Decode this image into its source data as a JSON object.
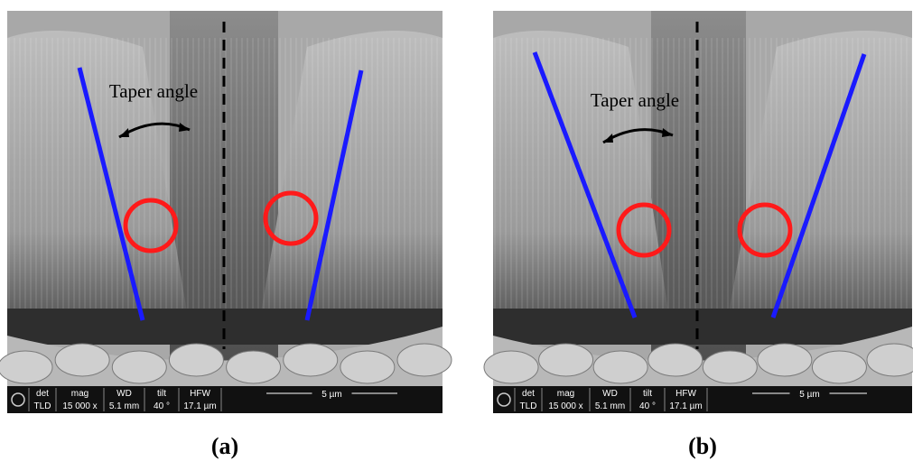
{
  "panels": [
    {
      "taper_label": "Taper angle",
      "info_bar": {
        "headers": [
          "det",
          "mag",
          "WD",
          "tilt",
          "HFW"
        ],
        "values": [
          "TLD",
          "15 000 x",
          "5.1 mm",
          "40 °",
          "17.1 µm"
        ],
        "scale": "5 µm"
      },
      "caption": "(a)"
    },
    {
      "taper_label": "Taper angle",
      "info_bar": {
        "headers": [
          "det",
          "mag",
          "WD",
          "tilt",
          "HFW"
        ],
        "values": [
          "TLD",
          "15 000 x",
          "5.1 mm",
          "40 °",
          "17.1 µm"
        ],
        "scale": "5 µm"
      },
      "caption": "(b)"
    }
  ]
}
